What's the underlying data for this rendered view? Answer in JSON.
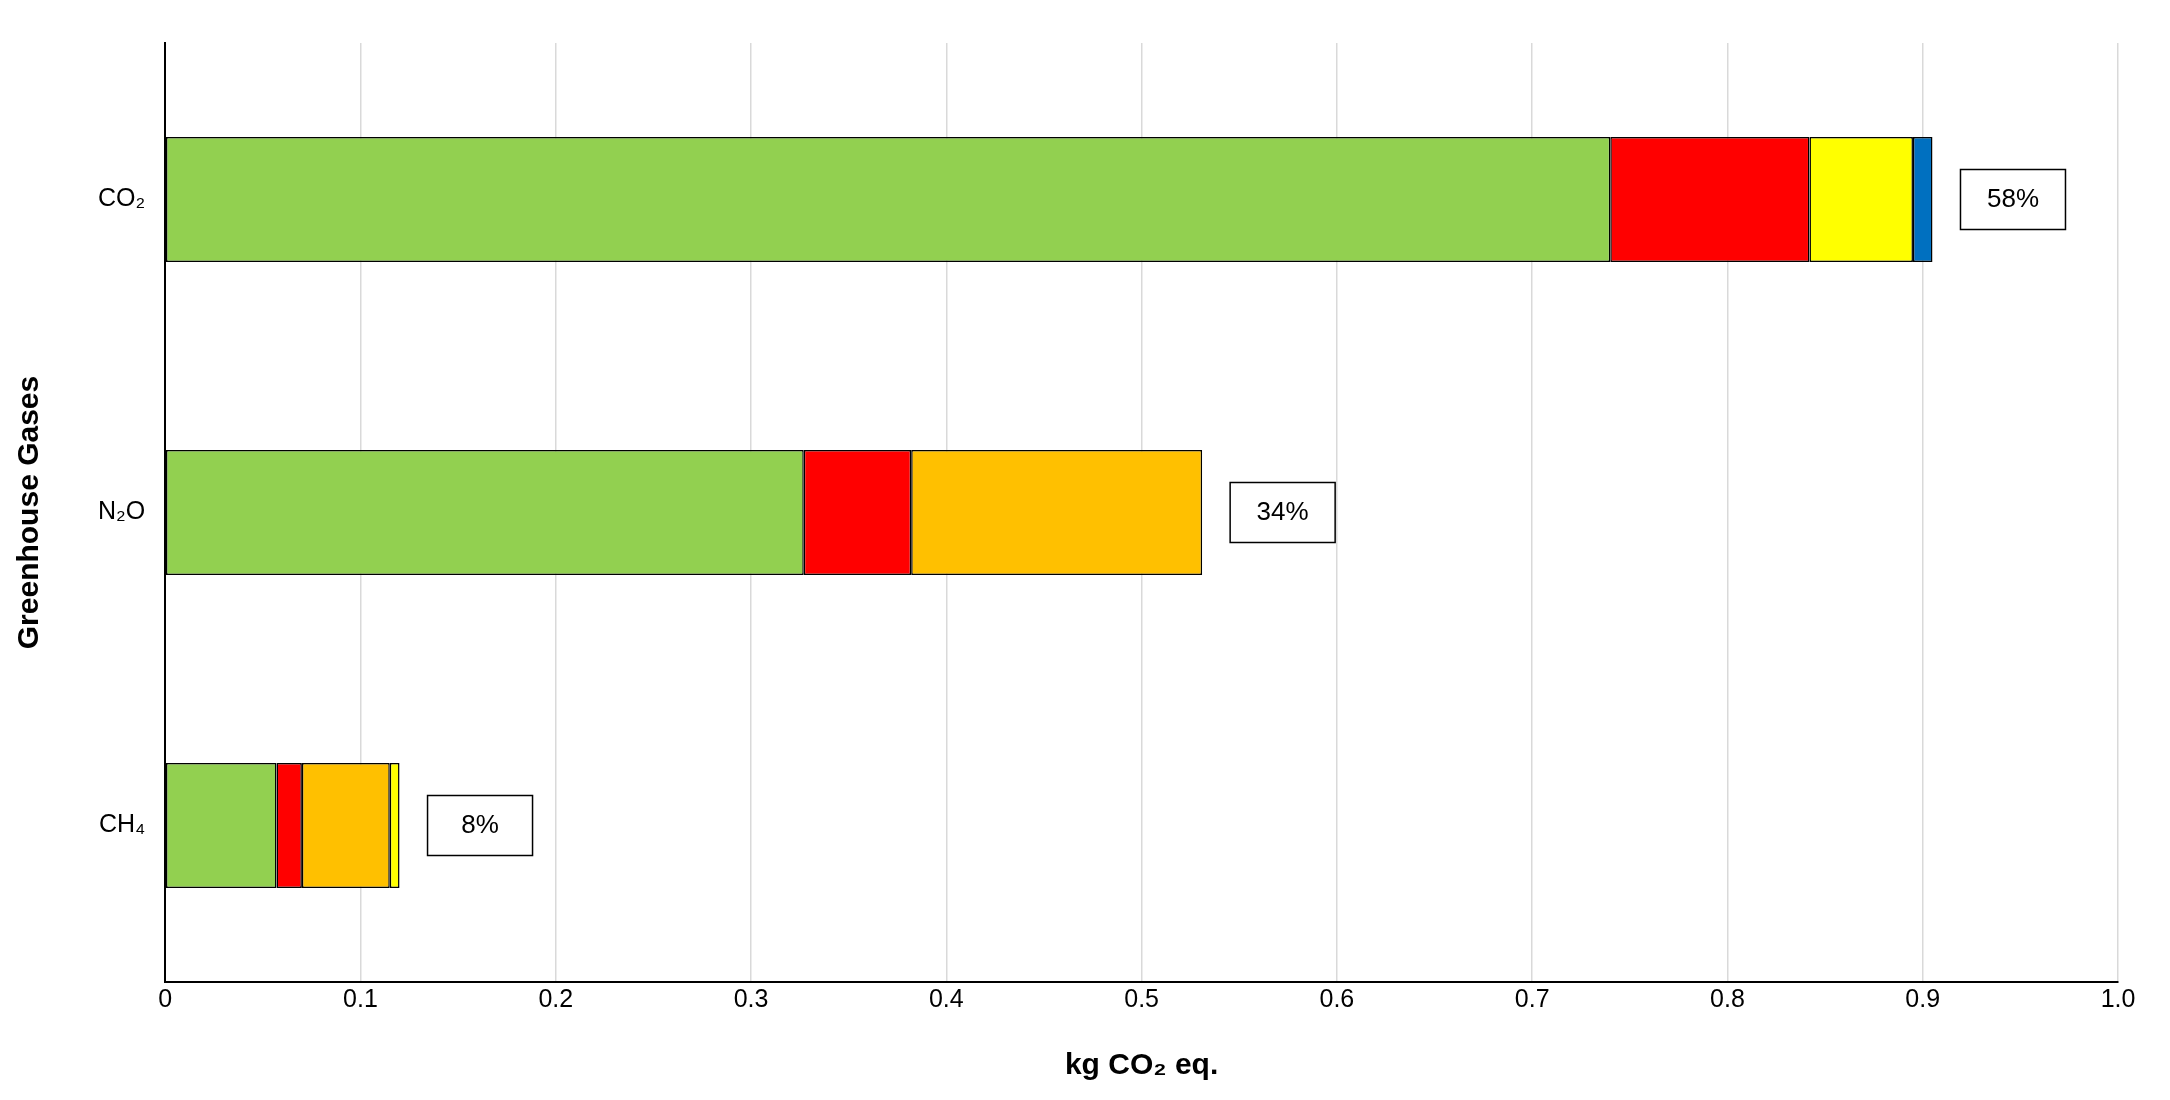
{
  "chart_data": {
    "type": "bar",
    "orientation": "horizontal",
    "stacked": true,
    "xlabel": "kg CO₂ eq.",
    "ylabel": "Greenhouse Gases",
    "categories": [
      "CO₂",
      "N₂O",
      "CH₄"
    ],
    "series": [
      {
        "color": "#92d050",
        "values": [
          0.74,
          0.327,
          0.057
        ]
      },
      {
        "color": "#ff0000",
        "values": [
          0.102,
          0.055,
          0.013
        ]
      },
      {
        "color": "#ffc000",
        "values": [
          0,
          0.149,
          0.045
        ]
      },
      {
        "color": "#ffff00",
        "values": [
          0.053,
          0,
          0.005
        ]
      },
      {
        "color": "#0070c0",
        "values": [
          0.01,
          0,
          0
        ]
      }
    ],
    "xlim": [
      0,
      1
    ],
    "xticks": [
      0,
      0.1,
      0.2,
      0.3,
      0.4,
      0.5,
      0.6,
      0.7,
      0.8,
      0.9,
      {
        "value": 1,
        "label": "1.0"
      }
    ],
    "grid": "x",
    "legend": false,
    "annotations": [
      {
        "text": "58%",
        "x": 0.905,
        "y": "CO₂"
      },
      {
        "text": "34%",
        "x": 0.531,
        "y": "N₂O"
      },
      {
        "text": "8%",
        "x": 0.12,
        "y": "CH₄"
      }
    ]
  }
}
